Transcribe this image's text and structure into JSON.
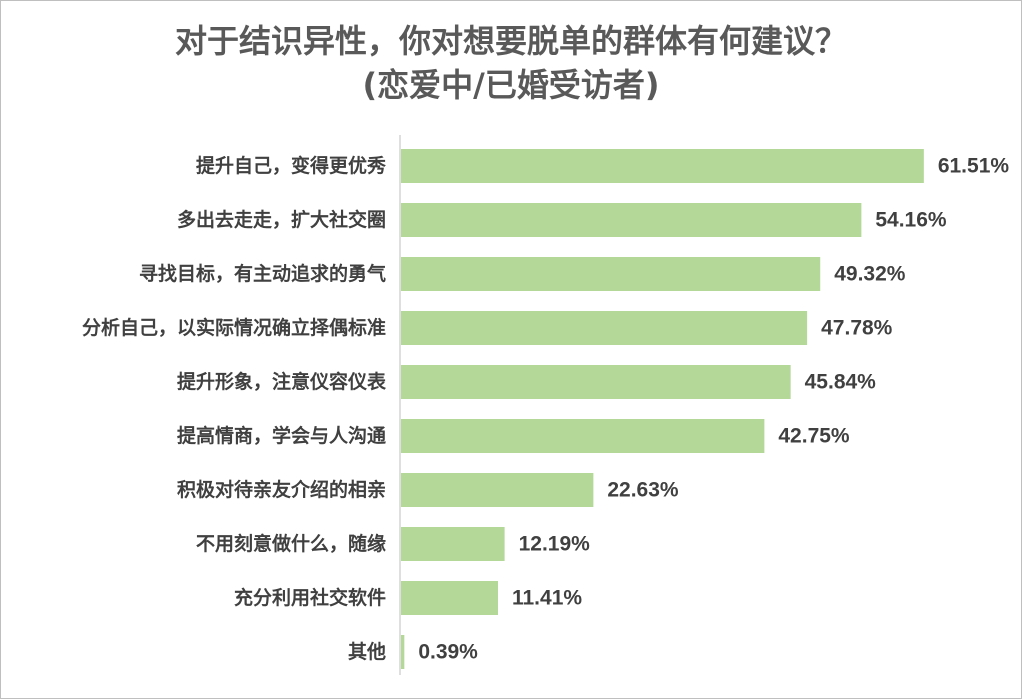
{
  "chart_data": {
    "type": "bar",
    "orientation": "horizontal",
    "title": "对于结识异性，你对想要脱单的群体有何建议？",
    "subtitle": "(恋爱中/已婚受访者)",
    "categories": [
      "提升自己，变得更优秀",
      "多出去走走，扩大社交圈",
      "寻找目标，有主动追求的勇气",
      "分析自己，以实际情况确立择偶标准",
      "提升形象，注意仪容仪表",
      "提高情商，学会与人沟通",
      "积极对待亲友介绍的相亲",
      "不用刻意做什么，随缘",
      "充分利用社交软件",
      "其他"
    ],
    "values": [
      61.51,
      54.16,
      49.32,
      47.78,
      45.84,
      42.75,
      22.63,
      12.19,
      11.41,
      0.39
    ],
    "value_labels": [
      "61.51%",
      "54.16%",
      "49.32%",
      "47.78%",
      "45.84%",
      "42.75%",
      "22.63%",
      "12.19%",
      "11.41%",
      "0.39%"
    ],
    "unit": "%",
    "xlim": [
      0,
      70
    ],
    "grid": false,
    "legend": "none",
    "bar_color": "#b4d898",
    "axis_color": "#bfbfbf"
  }
}
